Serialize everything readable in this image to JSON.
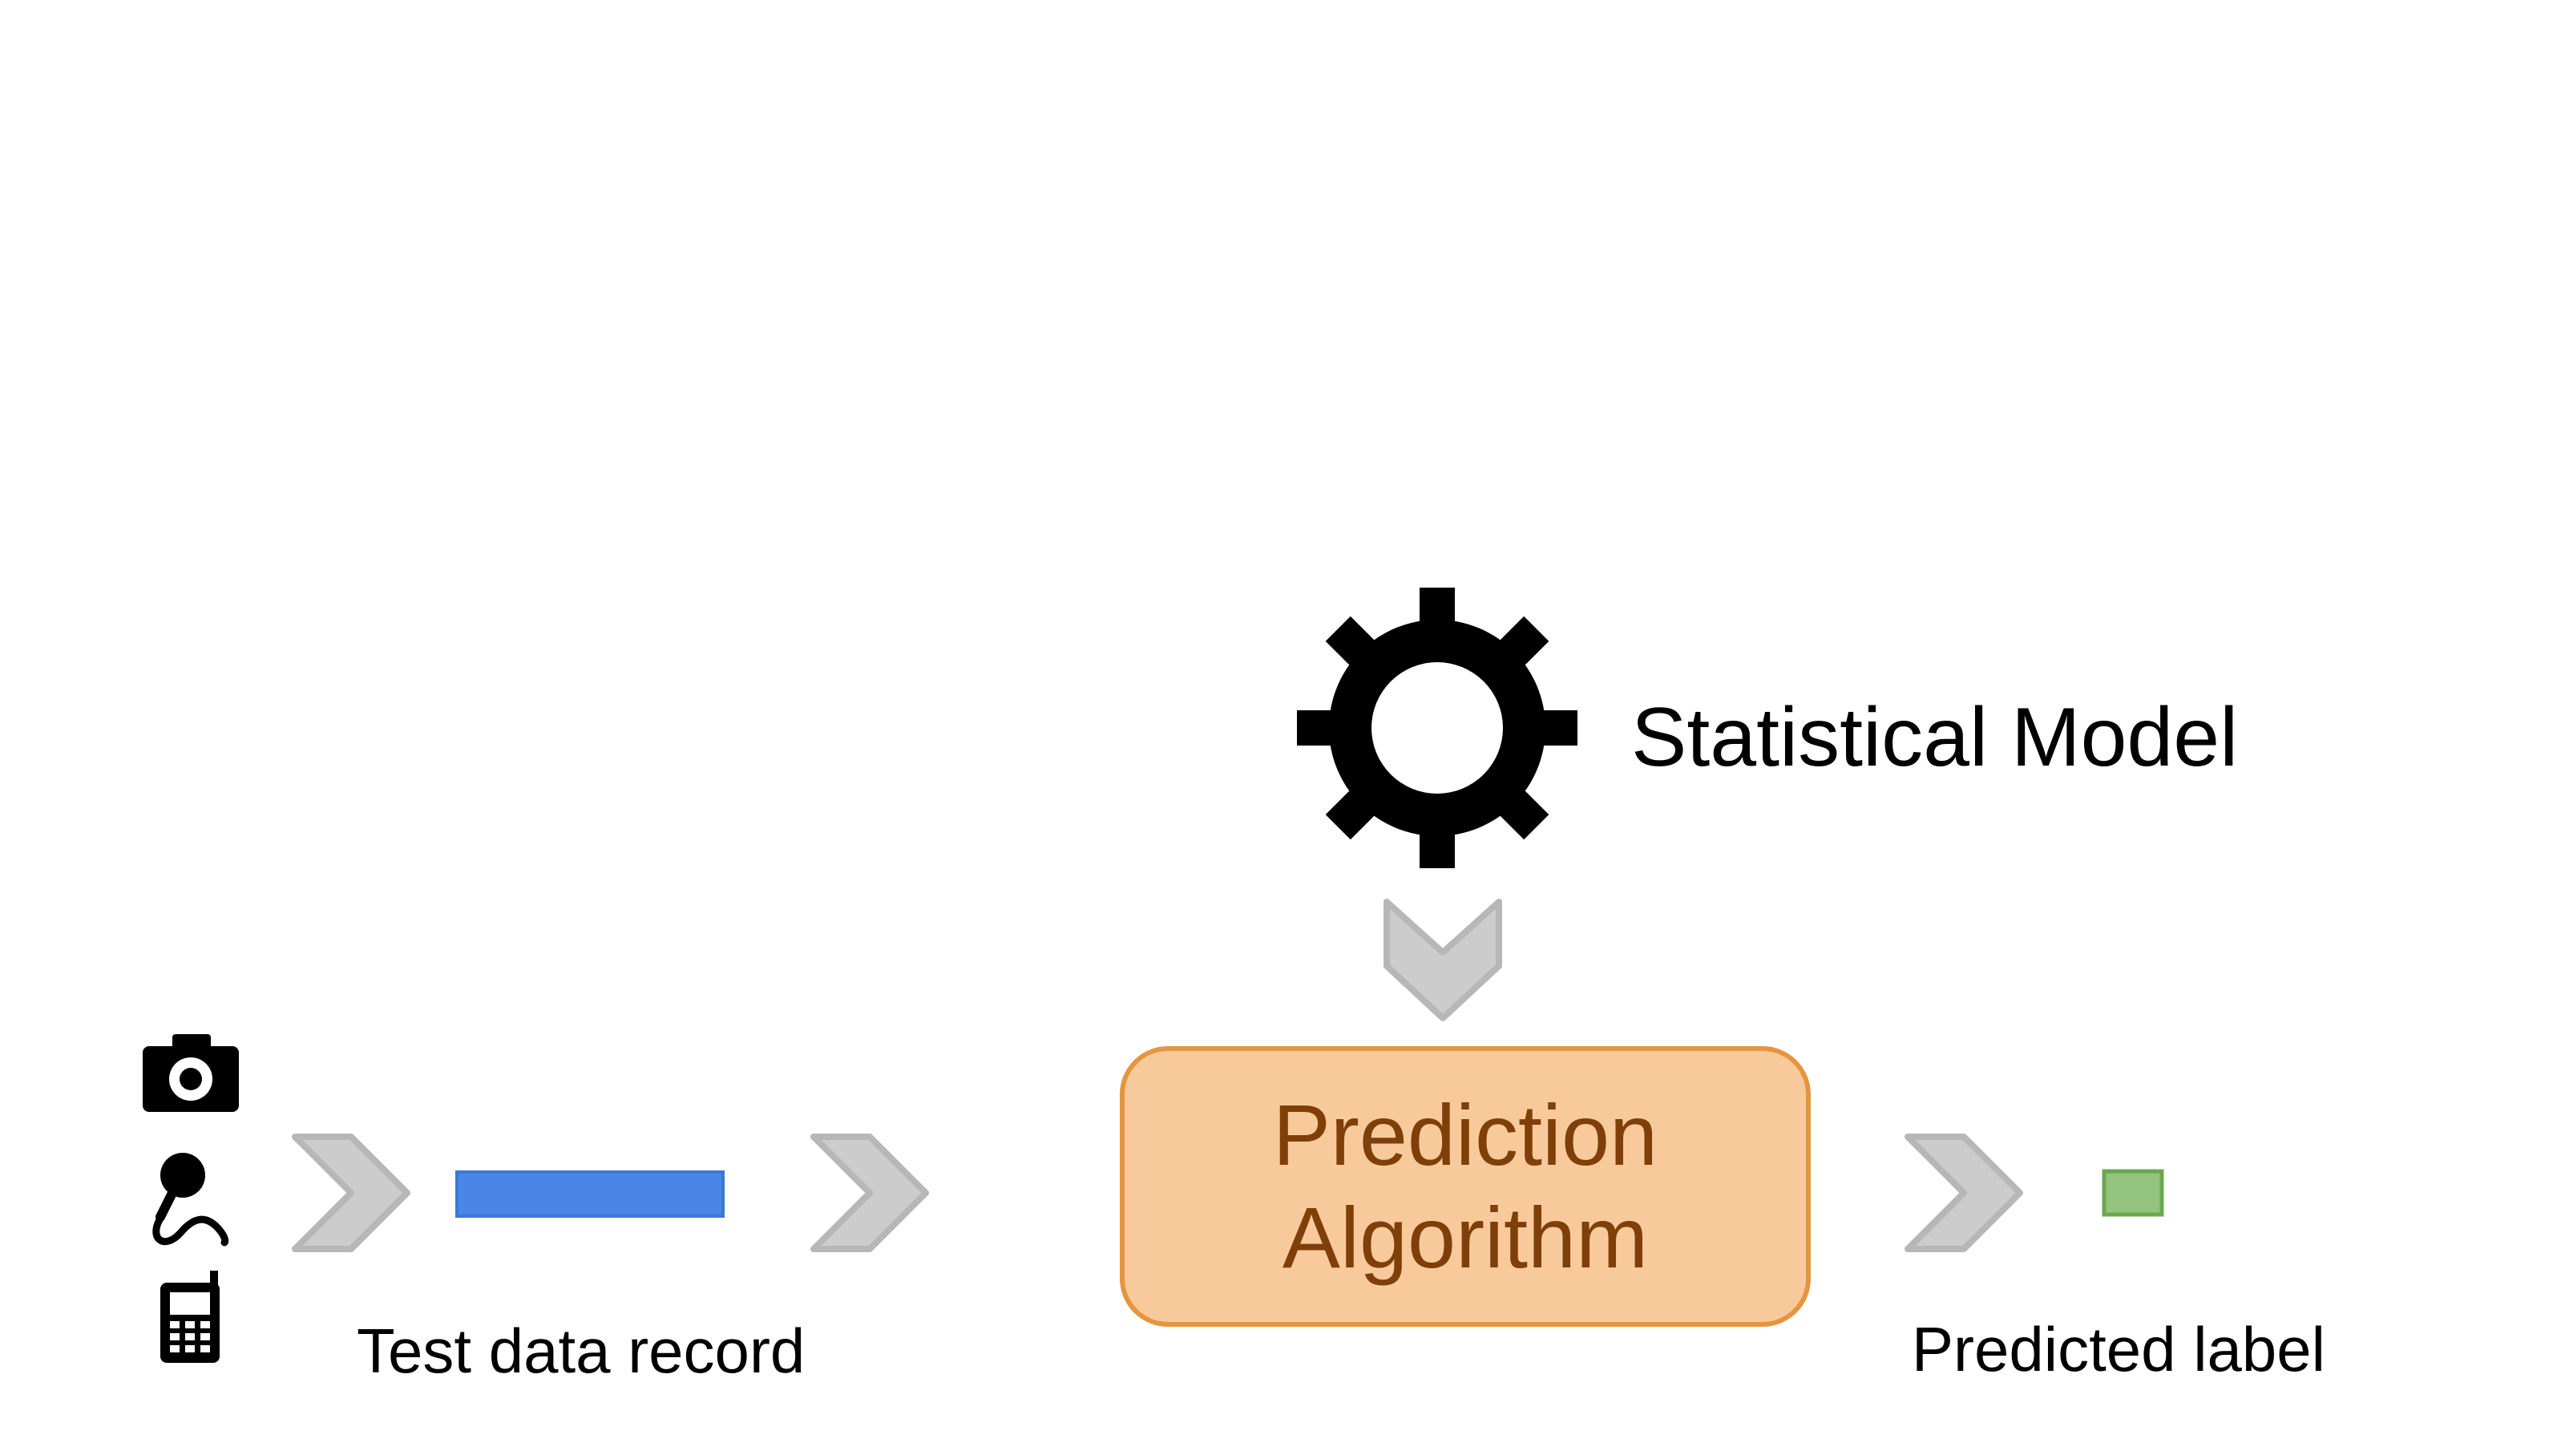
{
  "model": {
    "label": "Statistical Model",
    "icon": "gear-icon"
  },
  "algorithm": {
    "line1": "Prediction",
    "line2": "Algorithm"
  },
  "inputs": {
    "icons": [
      "camera-icon",
      "microphone-icon",
      "mobile-phone-icon"
    ]
  },
  "test_record": {
    "label": "Test data record",
    "color": "#4a86e8"
  },
  "predicted": {
    "label": "Predicted label",
    "color": "#93c47d"
  },
  "colors": {
    "box_fill": "#f8ca9b",
    "box_border": "#e5953f",
    "box_text": "#7f3f08",
    "arrow": "#cccccc",
    "arrow_border": "#b7b7b7"
  }
}
